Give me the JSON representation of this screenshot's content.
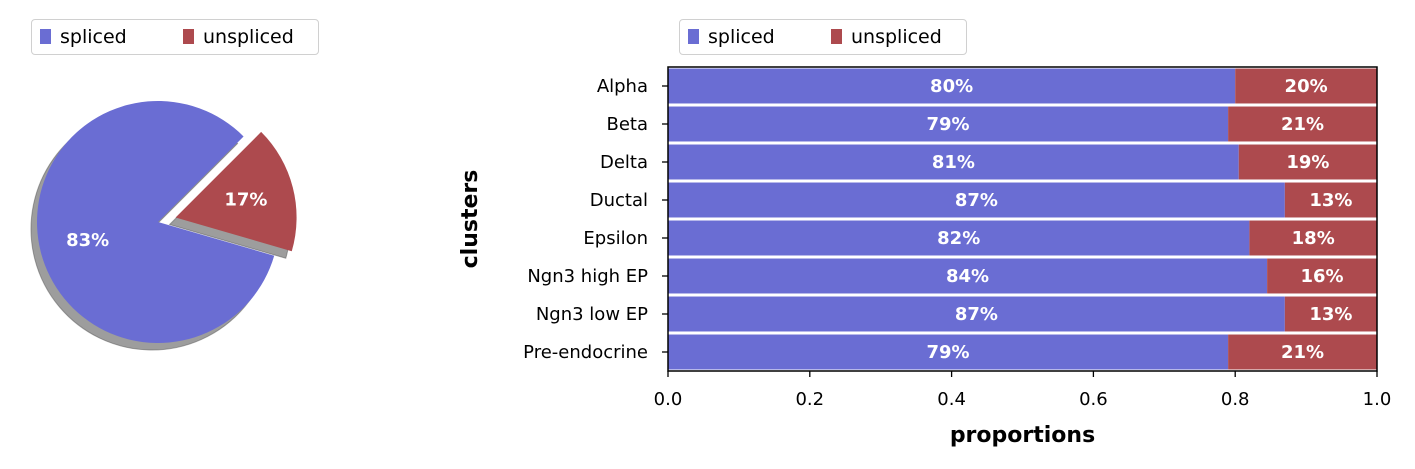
{
  "colors": {
    "spliced": "#6a6dd3",
    "unspliced": "#ad4a4e",
    "shadow": "#8c8c8c"
  },
  "chart_data": [
    {
      "type": "pie",
      "legend": [
        "spliced",
        "unspliced"
      ],
      "legend_placement": "top-left",
      "slices": [
        {
          "label": "spliced",
          "value": 83,
          "text": "83%"
        },
        {
          "label": "unspliced",
          "value": 17,
          "text": "17%"
        }
      ],
      "explode_slice": "unspliced",
      "shadow": true
    },
    {
      "type": "bar",
      "orientation": "horizontal",
      "stacked": true,
      "legend": [
        "spliced",
        "unspliced"
      ],
      "legend_placement": "top-left",
      "xlabel": "proportions",
      "ylabel": "clusters",
      "xlim": [
        0,
        1
      ],
      "xticks": [
        "0.0",
        "0.2",
        "0.4",
        "0.6",
        "0.8",
        "1.0"
      ],
      "grid": false,
      "categories": [
        "Alpha",
        "Beta",
        "Delta",
        "Ductal",
        "Epsilon",
        "Ngn3 high EP",
        "Ngn3 low EP",
        "Pre-endocrine"
      ],
      "series": [
        {
          "name": "spliced",
          "values": [
            0.8,
            0.79,
            0.805,
            0.87,
            0.82,
            0.845,
            0.87,
            0.79
          ],
          "labels": [
            "80%",
            "79%",
            "81%",
            "87%",
            "82%",
            "84%",
            "87%",
            "79%"
          ]
        },
        {
          "name": "unspliced",
          "values": [
            0.2,
            0.21,
            0.195,
            0.13,
            0.18,
            0.155,
            0.13,
            0.21
          ],
          "labels": [
            "20%",
            "21%",
            "19%",
            "13%",
            "18%",
            "16%",
            "13%",
            "21%"
          ]
        }
      ]
    }
  ]
}
